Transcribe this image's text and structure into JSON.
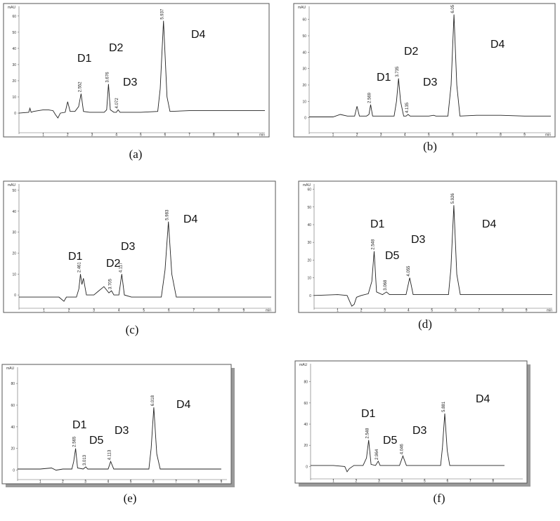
{
  "chart_data": [
    {
      "type": "line",
      "label": "(a)",
      "y_unit": "mAU",
      "x_unit": "min",
      "color": "#222222",
      "xlim": [
        0,
        10.1
      ],
      "ylim": [
        -13,
        66
      ],
      "xticks": [
        1,
        2,
        3,
        4,
        5,
        6,
        7,
        8,
        9
      ],
      "yticks": [
        0,
        10,
        20,
        30,
        40,
        50,
        60
      ],
      "x": [
        0,
        0.4,
        0.45,
        0.5,
        0.6,
        0.8,
        1.0,
        1.2,
        1.4,
        1.5,
        1.6,
        1.7,
        1.9,
        2.0,
        2.1,
        2.3,
        2.45,
        2.552,
        2.65,
        2.9,
        3.5,
        3.6,
        3.676,
        3.75,
        3.9,
        4.0,
        4.072,
        4.15,
        4.5,
        5.0,
        5.7,
        5.8,
        5.937,
        6.08,
        6.2,
        7.0,
        8.0,
        9.0,
        10.1
      ],
      "values": [
        0,
        0.5,
        3,
        0.5,
        1,
        1.5,
        2,
        2,
        1.5,
        -1,
        -3,
        0,
        0.5,
        7,
        1,
        1,
        4,
        12,
        1,
        0.5,
        0.5,
        2,
        18,
        2,
        0.5,
        0.5,
        2,
        0.5,
        0.5,
        0.5,
        1,
        15,
        57,
        10,
        1,
        1.5,
        1.5,
        1.5,
        1.5
      ],
      "peaks": [
        2.552,
        3.676,
        4.072,
        5.937
      ],
      "compounds": [
        "D1",
        "D2",
        "D3",
        "D4"
      ]
    },
    {
      "type": "line",
      "label": "(b)",
      "y_unit": "mAU",
      "x_unit": "min",
      "color": "#222222",
      "xlim": [
        0,
        10.1
      ],
      "ylim": [
        -10,
        68
      ],
      "xticks": [
        1,
        2,
        3,
        4,
        5,
        6,
        7,
        8,
        9
      ],
      "yticks": [
        0,
        10,
        20,
        30,
        40,
        50,
        60
      ],
      "x": [
        0,
        1.0,
        1.3,
        1.6,
        1.9,
        2.0,
        2.1,
        2.4,
        2.5,
        2.569,
        2.65,
        3.0,
        3.55,
        3.65,
        3.735,
        3.82,
        3.95,
        4.05,
        4.135,
        4.22,
        5.0,
        5.2,
        5.3,
        5.8,
        5.93,
        6.05,
        6.17,
        6.3,
        7.0,
        8.0,
        9.0,
        10.1
      ],
      "values": [
        0.5,
        0.5,
        2,
        1,
        1,
        7,
        1,
        1,
        2,
        8,
        1,
        1,
        1,
        10,
        24,
        10,
        1,
        1,
        2,
        1,
        1,
        1.5,
        1,
        1,
        20,
        63,
        20,
        1,
        1.5,
        1.5,
        1,
        1
      ],
      "peaks": [
        2.569,
        3.735,
        4.135,
        6.05
      ],
      "compounds": [
        "D1",
        "D2",
        "D3",
        "D4"
      ]
    },
    {
      "type": "line",
      "label": "(c)",
      "y_unit": "mAU",
      "x_unit": "min",
      "color": "#222222",
      "xlim": [
        0,
        10.1
      ],
      "ylim": [
        -7,
        53
      ],
      "xticks": [
        1,
        2,
        3,
        4,
        5,
        6,
        7,
        8,
        9
      ],
      "yticks": [
        0,
        10,
        20,
        30,
        40,
        50
      ],
      "x": [
        0,
        1.6,
        1.8,
        1.9,
        2.0,
        2.3,
        2.4,
        2.461,
        2.52,
        2.58,
        2.7,
        3.0,
        3.2,
        3.4,
        3.6,
        3.705,
        3.8,
        4.0,
        4.117,
        4.22,
        4.5,
        5.7,
        5.85,
        5.983,
        6.12,
        6.3,
        7.0,
        10.1
      ],
      "values": [
        -1,
        -1,
        -3,
        -1,
        -1,
        -1,
        3,
        10,
        5,
        8,
        0,
        0,
        2,
        4,
        1,
        2,
        0,
        0,
        10,
        0,
        -1,
        -1,
        12,
        35,
        10,
        -1,
        -1,
        -1
      ],
      "peaks": [
        2.461,
        3.705,
        4.117,
        5.983
      ],
      "compounds": [
        "D1",
        "D2",
        "D3",
        "D4"
      ]
    },
    {
      "type": "line",
      "label": "(d)",
      "y_unit": "mAU",
      "x_unit": "min",
      "color": "#222222",
      "xlim": [
        0,
        10.1
      ],
      "ylim": [
        -8,
        63
      ],
      "xticks": [
        1,
        2,
        3,
        4,
        5,
        6,
        7,
        8,
        9
      ],
      "yticks": [
        0,
        10,
        20,
        30,
        40,
        50,
        60
      ],
      "x": [
        0,
        1.0,
        1.4,
        1.5,
        1.6,
        1.7,
        1.8,
        2.0,
        2.3,
        2.45,
        2.548,
        2.65,
        2.9,
        3.068,
        3.2,
        3.9,
        4.055,
        4.2,
        4.5,
        5.7,
        5.8,
        5.926,
        6.05,
        6.2,
        7.0,
        10.1
      ],
      "values": [
        0,
        0.5,
        0,
        -3,
        -6,
        -5,
        -1,
        0,
        1,
        8,
        25,
        2,
        0.5,
        2,
        0.5,
        0.5,
        10,
        0.5,
        0.5,
        0.5,
        15,
        51,
        12,
        0.5,
        0.5,
        0.5
      ],
      "peaks": [
        2.548,
        3.068,
        4.055,
        5.926
      ],
      "compounds": [
        "D1",
        "D5",
        "D3",
        "D4"
      ]
    },
    {
      "type": "line",
      "label": "(e)",
      "y_unit": "mAU",
      "color": "#222222",
      "xlim": [
        0,
        9.25
      ],
      "ylim": [
        -10,
        95
      ],
      "xticks": [
        1,
        2,
        3,
        4,
        5,
        6,
        7,
        8,
        9
      ],
      "yticks": [
        0,
        20,
        40,
        60,
        80
      ],
      "x": [
        0,
        1.0,
        1.5,
        1.7,
        2.0,
        2.4,
        2.48,
        2.565,
        2.65,
        2.9,
        3.013,
        3.1,
        4.0,
        4.113,
        4.25,
        5.8,
        5.9,
        6.018,
        6.15,
        6.3,
        9.0
      ],
      "values": [
        1,
        1,
        2,
        0,
        1,
        1,
        8,
        20,
        2,
        1,
        3,
        1,
        1,
        8,
        1,
        1,
        20,
        58,
        15,
        1,
        1
      ],
      "peaks": [
        2.565,
        3.013,
        4.113,
        6.018
      ],
      "compounds": [
        "D1",
        "D5",
        "D3",
        "D4"
      ]
    },
    {
      "type": "line",
      "label": "(f)",
      "y_unit": "mAU",
      "color": "#222222",
      "xlim": [
        0,
        9.3
      ],
      "ylim": [
        -13,
        97
      ],
      "xticks": [
        1,
        2,
        3,
        4,
        5,
        6,
        7,
        8
      ],
      "yticks": [
        0,
        20,
        40,
        60,
        80
      ],
      "x": [
        0,
        1.0,
        1.5,
        1.6,
        1.7,
        1.9,
        2.3,
        2.45,
        2.548,
        2.65,
        2.85,
        2.964,
        3.05,
        3.9,
        4.046,
        4.2,
        5.7,
        5.78,
        5.881,
        5.99,
        6.1,
        8.5
      ],
      "values": [
        1,
        1,
        0,
        -5,
        -2,
        1,
        1,
        8,
        25,
        2,
        1,
        5,
        1,
        1,
        10,
        1,
        1,
        18,
        50,
        15,
        1,
        1
      ],
      "peaks": [
        2.548,
        2.964,
        4.046,
        5.881
      ],
      "compounds": [
        "D1",
        "D5",
        "D3",
        "D4"
      ]
    }
  ]
}
